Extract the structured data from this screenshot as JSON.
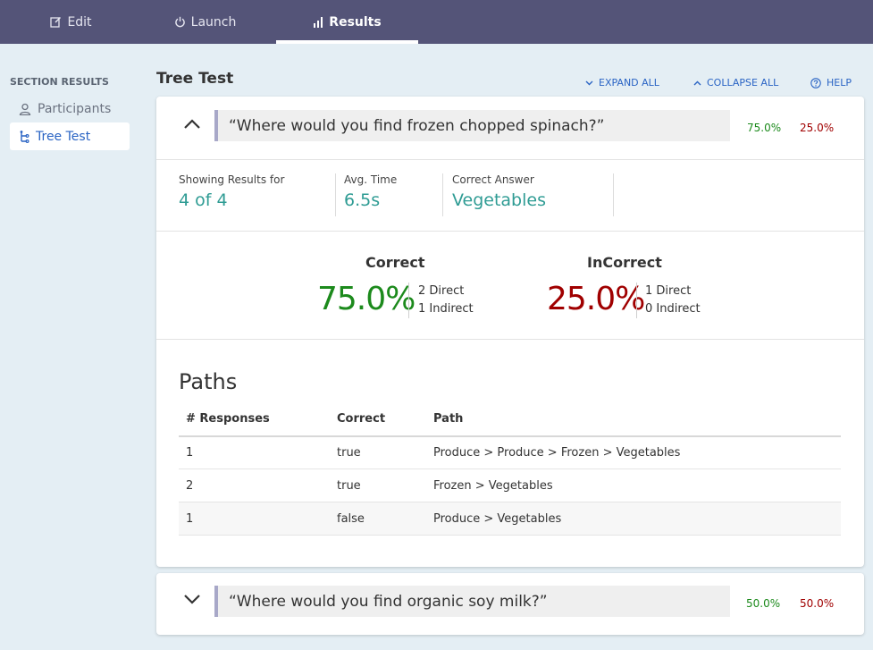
{
  "nav": {
    "tabs": [
      {
        "label": "Edit",
        "icon": "edit-icon"
      },
      {
        "label": "Launch",
        "icon": "power-icon"
      },
      {
        "label": "Results",
        "icon": "bar-chart-icon",
        "active": true
      }
    ]
  },
  "sidebar": {
    "heading": "SECTION RESULTS",
    "items": [
      {
        "label": "Participants",
        "icon": "user-icon"
      },
      {
        "label": "Tree Test",
        "icon": "tree-icon",
        "active": true
      }
    ]
  },
  "header": {
    "title": "Tree Test",
    "expand_all": "EXPAND ALL",
    "collapse_all": "COLLAPSE ALL",
    "help": "HELP"
  },
  "questions": [
    {
      "text": "“Where would you find frozen chopped spinach?”",
      "expanded": true,
      "correct_pct": "75.0%",
      "incorrect_pct": "25.0%",
      "stats": {
        "showing_label": "Showing Results for",
        "showing_value": "4 of 4",
        "avg_label": "Avg. Time",
        "avg_value": "6.5s",
        "answer_label": "Correct Answer",
        "answer_value": "Vegetables"
      },
      "results": {
        "correct_label": "Correct",
        "correct_value": "75.0%",
        "correct_direct": "2 Direct",
        "correct_indirect": "1 Indirect",
        "incorrect_label": "InCorrect",
        "incorrect_value": "25.0%",
        "incorrect_direct": "1 Direct",
        "incorrect_indirect": "0 Indirect"
      },
      "paths": {
        "title": "Paths",
        "columns": [
          "# Responses",
          "Correct",
          "Path"
        ],
        "rows": [
          {
            "responses": "1",
            "correct": "true",
            "path": "Produce > Produce > Frozen > Vegetables"
          },
          {
            "responses": "2",
            "correct": "true",
            "path": "Frozen > Vegetables"
          },
          {
            "responses": "1",
            "correct": "false",
            "path": "Produce > Vegetables"
          }
        ]
      }
    },
    {
      "text": "“Where would you find organic soy milk?”",
      "expanded": false,
      "correct_pct": "50.0%",
      "incorrect_pct": "50.0%"
    }
  ],
  "colors": {
    "nav_bg": "#545478",
    "page_bg": "#e4eef4",
    "accent_blue": "#2a64c4",
    "teal": "#2f9c94",
    "correct_green": "#1c8a1c",
    "incorrect_red": "#a00000"
  }
}
